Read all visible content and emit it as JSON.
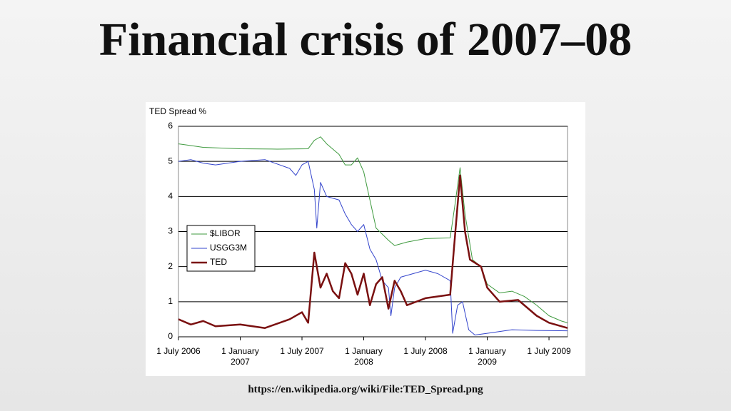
{
  "title": "Financial crisis of 2007–08",
  "caption": "https://en.wikipedia.org/wiki/File:TED_Spread.png",
  "chart_data": {
    "type": "line",
    "y_label": "TED Spread %",
    "xlim": [
      2006.5,
      2009.65
    ],
    "ylim": [
      0,
      6
    ],
    "yticks": [
      0,
      1,
      2,
      3,
      4,
      5,
      6
    ],
    "grid": true,
    "legend": "left",
    "xticks": [
      {
        "value": 2006.5,
        "label": "1 July 2006"
      },
      {
        "value": 2007.0,
        "label": "1 January 2007"
      },
      {
        "value": 2007.5,
        "label": "1 July 2007"
      },
      {
        "value": 2008.0,
        "label": "1 January 2008"
      },
      {
        "value": 2008.5,
        "label": "1 July 2008"
      },
      {
        "value": 2009.0,
        "label": "1 January 2009"
      },
      {
        "value": 2009.5,
        "label": "1 July 2009"
      }
    ],
    "series": [
      {
        "name": "$LIBOR",
        "color": "#3f9a3f",
        "width": 1,
        "x": [
          2006.5,
          2006.6,
          2006.7,
          2007.0,
          2007.3,
          2007.55,
          2007.6,
          2007.65,
          2007.7,
          2007.8,
          2007.85,
          2007.9,
          2007.95,
          2008.0,
          2008.05,
          2008.1,
          2008.2,
          2008.25,
          2008.35,
          2008.5,
          2008.7,
          2008.74,
          2008.78,
          2008.82,
          2008.88,
          2008.95,
          2009.0,
          2009.1,
          2009.2,
          2009.3,
          2009.4,
          2009.5,
          2009.6,
          2009.65
        ],
        "values": [
          5.5,
          5.45,
          5.4,
          5.36,
          5.35,
          5.36,
          5.6,
          5.7,
          5.5,
          5.2,
          4.9,
          4.9,
          5.1,
          4.7,
          3.9,
          3.1,
          2.75,
          2.6,
          2.7,
          2.8,
          2.82,
          3.8,
          4.82,
          3.5,
          2.2,
          2.0,
          1.5,
          1.25,
          1.3,
          1.15,
          0.9,
          0.6,
          0.45,
          0.4
        ]
      },
      {
        "name": "USGG3M",
        "color": "#3344cc",
        "width": 1,
        "x": [
          2006.5,
          2006.6,
          2006.7,
          2006.8,
          2007.0,
          2007.2,
          2007.4,
          2007.45,
          2007.5,
          2007.55,
          2007.6,
          2007.62,
          2007.65,
          2007.7,
          2007.8,
          2007.85,
          2007.9,
          2007.95,
          2008.0,
          2008.05,
          2008.1,
          2008.15,
          2008.2,
          2008.22,
          2008.25,
          2008.3,
          2008.4,
          2008.5,
          2008.6,
          2008.7,
          2008.72,
          2008.76,
          2008.8,
          2008.85,
          2008.9,
          2009.0,
          2009.2,
          2009.4,
          2009.65
        ],
        "values": [
          5.0,
          5.05,
          4.95,
          4.9,
          5.0,
          5.05,
          4.8,
          4.6,
          4.9,
          5.0,
          4.2,
          3.1,
          4.4,
          4.0,
          3.9,
          3.5,
          3.2,
          3.0,
          3.2,
          2.5,
          2.2,
          1.6,
          1.4,
          0.6,
          1.4,
          1.7,
          1.8,
          1.9,
          1.8,
          1.6,
          0.1,
          0.9,
          1.0,
          0.2,
          0.05,
          0.1,
          0.2,
          0.18,
          0.17
        ]
      },
      {
        "name": "TED",
        "color": "#7a1010",
        "width": 2.5,
        "x": [
          2006.5,
          2006.6,
          2006.7,
          2006.8,
          2007.0,
          2007.2,
          2007.4,
          2007.5,
          2007.55,
          2007.6,
          2007.65,
          2007.7,
          2007.75,
          2007.8,
          2007.85,
          2007.9,
          2007.95,
          2008.0,
          2008.05,
          2008.1,
          2008.15,
          2008.2,
          2008.25,
          2008.3,
          2008.35,
          2008.5,
          2008.7,
          2008.73,
          2008.78,
          2008.82,
          2008.86,
          2008.95,
          2009.0,
          2009.1,
          2009.25,
          2009.4,
          2009.5,
          2009.65
        ],
        "values": [
          0.5,
          0.35,
          0.45,
          0.3,
          0.35,
          0.25,
          0.5,
          0.7,
          0.4,
          2.4,
          1.4,
          1.8,
          1.3,
          1.1,
          2.1,
          1.8,
          1.2,
          1.8,
          0.9,
          1.5,
          1.7,
          0.8,
          1.6,
          1.3,
          0.9,
          1.1,
          1.2,
          2.5,
          4.6,
          3.0,
          2.2,
          2.0,
          1.4,
          1.0,
          1.05,
          0.6,
          0.4,
          0.25
        ]
      }
    ]
  }
}
